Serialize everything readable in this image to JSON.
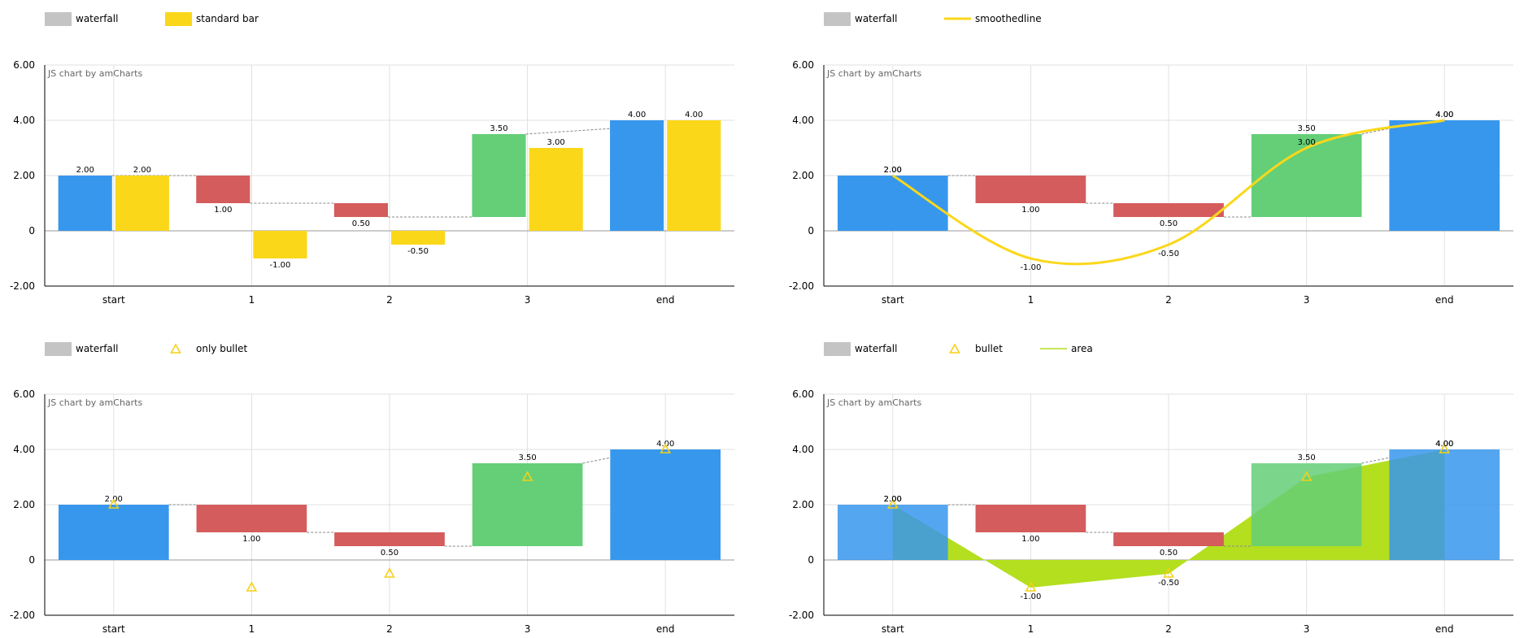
{
  "colors": {
    "start_end": "#3797ed",
    "decrease": "#d45c5c",
    "increase": "#64cf77",
    "legend_waterfall": "#c4c4c4",
    "accent_yellow": "#fbd71a",
    "bullet": "#f6d013",
    "area_fill": "#b3df1f"
  },
  "chart_data": [
    {
      "type": "bar",
      "credit": "JS chart by amCharts",
      "categories": [
        "start",
        "1",
        "2",
        "3",
        "end"
      ],
      "yticks": [
        "6.00",
        "4.00",
        "2.00",
        "0",
        "-2.00"
      ],
      "ylim": [
        -2,
        6
      ],
      "waterfall": {
        "name": "waterfall",
        "open": [
          0,
          2,
          1,
          0.5,
          0
        ],
        "close": [
          2,
          1,
          0.5,
          3.5,
          4
        ],
        "labels": [
          "2.00",
          "1.00",
          "0.50",
          "3.50",
          "4.00"
        ]
      },
      "overlay": {
        "kind": "column",
        "name": "standard bar",
        "values": [
          2,
          -1,
          -0.5,
          3,
          4
        ],
        "labels": [
          "2.00",
          "-1.00",
          "-0.50",
          "3.00",
          "4.00"
        ]
      },
      "legend": [
        "waterfall",
        "standard bar"
      ]
    },
    {
      "type": "bar",
      "credit": "JS chart by amCharts",
      "categories": [
        "start",
        "1",
        "2",
        "3",
        "end"
      ],
      "yticks": [
        "6.00",
        "4.00",
        "2.00",
        "0",
        "-2.00"
      ],
      "ylim": [
        -2,
        6
      ],
      "waterfall": {
        "name": "waterfall",
        "open": [
          0,
          2,
          1,
          0.5,
          0
        ],
        "close": [
          2,
          1,
          0.5,
          3.5,
          4
        ],
        "labels": [
          "2.00",
          "1.00",
          "0.50",
          "3.50",
          "4.00"
        ]
      },
      "overlay": {
        "kind": "smooth",
        "name": "smoothedline",
        "values": [
          2,
          -1,
          -0.5,
          3,
          4
        ],
        "labels": [
          "2.00",
          "-1.00",
          "-0.50",
          "3.00",
          "4.00"
        ]
      },
      "legend": [
        "waterfall",
        "smoothedline"
      ]
    },
    {
      "type": "bar",
      "credit": "JS chart by amCharts",
      "categories": [
        "start",
        "1",
        "2",
        "3",
        "end"
      ],
      "yticks": [
        "6.00",
        "4.00",
        "2.00",
        "0",
        "-2.00"
      ],
      "ylim": [
        -2,
        6
      ],
      "waterfall": {
        "name": "waterfall",
        "open": [
          0,
          2,
          1,
          0.5,
          0
        ],
        "close": [
          2,
          1,
          0.5,
          3.5,
          4
        ],
        "labels": [
          "2.00",
          "1.00",
          "0.50",
          "3.50",
          "4.00"
        ]
      },
      "overlay": {
        "kind": "bullet",
        "name": "only bullet",
        "values": [
          2,
          -1,
          -0.5,
          3,
          4
        ],
        "labels": []
      },
      "legend": [
        "waterfall",
        "only bullet"
      ]
    },
    {
      "type": "bar",
      "credit": "JS chart by amCharts",
      "categories": [
        "start",
        "1",
        "2",
        "3",
        "end"
      ],
      "yticks": [
        "6.00",
        "4.00",
        "2.00",
        "0",
        "-2.00"
      ],
      "ylim": [
        -2,
        6
      ],
      "waterfall": {
        "name": "waterfall",
        "open": [
          0,
          2,
          1,
          0.5,
          0
        ],
        "close": [
          2,
          1,
          0.5,
          3.5,
          4
        ],
        "labels": [
          "2.00",
          "1.00",
          "0.50",
          "3.50",
          "4.00"
        ]
      },
      "overlay": {
        "kind": "area",
        "name": "bullet",
        "area_name": "area",
        "values": [
          2,
          -1,
          -0.5,
          3,
          4
        ],
        "labels": [
          "2.00",
          "-1.00",
          "-0.50",
          "",
          "4.00"
        ]
      },
      "legend": [
        "waterfall",
        "bullet",
        "area"
      ]
    }
  ]
}
